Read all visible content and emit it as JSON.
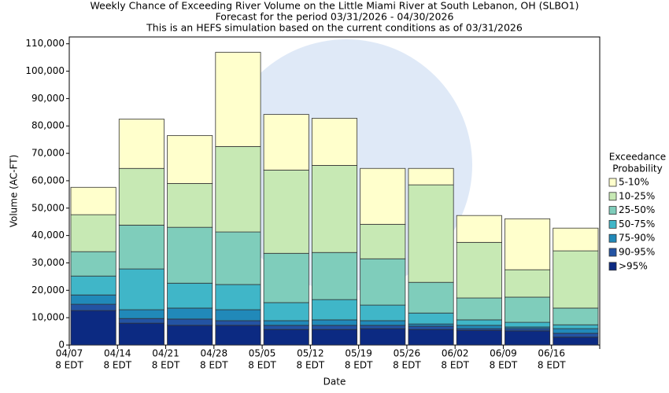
{
  "chart_data": {
    "type": "stacked_bar",
    "title": "Weekly Chance of Exceeding River Volume on the Little Miami River at South Lebanon, OH (SLBO1)",
    "subtitle": [
      "Forecast for the period 03/31/2026 - 04/30/2026",
      "This is an HEFS simulation based on the current conditions as of 03/31/2026"
    ],
    "x_label": "Date",
    "y_label": "Volume (AC-FT)",
    "legend_title": [
      "Exceedance",
      "Probability"
    ],
    "categories": [
      [
        "04/07",
        "8 EDT"
      ],
      [
        "04/14",
        "8 EDT"
      ],
      [
        "04/21",
        "8 EDT"
      ],
      [
        "04/28",
        "8 EDT"
      ],
      [
        "05/05",
        "8 EDT"
      ],
      [
        "05/12",
        "8 EDT"
      ],
      [
        "05/19",
        "8 EDT"
      ],
      [
        "05/26",
        "8 EDT"
      ],
      [
        "06/02",
        "8 EDT"
      ],
      [
        "06/09",
        "8 EDT"
      ],
      [
        "06/16",
        "8 EDT"
      ]
    ],
    "series": [
      {
        "name": ">95%",
        "color": "#0c2a82",
        "values": [
          12600,
          8000,
          7200,
          7200,
          5700,
          5700,
          6000,
          5700,
          5400,
          5200,
          2900
        ]
      },
      {
        "name": "90-95%",
        "color": "#2353a3",
        "values": [
          2300,
          1700,
          2300,
          1700,
          1500,
          1500,
          1200,
          1200,
          600,
          800,
          1400
        ]
      },
      {
        "name": "75-90%",
        "color": "#2189b9",
        "values": [
          3400,
          3200,
          4000,
          4000,
          1700,
          2000,
          1700,
          800,
          1200,
          600,
          1700
        ]
      },
      {
        "name": "50-75%",
        "color": "#40b6c8",
        "values": [
          6900,
          14900,
          9100,
          9200,
          6600,
          7400,
          5700,
          4000,
          2000,
          1700,
          1400
        ]
      },
      {
        "name": "25-50%",
        "color": "#7fcdbb",
        "values": [
          8900,
          16000,
          20400,
          19200,
          18000,
          17200,
          16900,
          11200,
          8000,
          9200,
          6100
        ]
      },
      {
        "name": "10-25%",
        "color": "#c7e9b4",
        "values": [
          13500,
          20700,
          16000,
          31200,
          30400,
          31800,
          12600,
          35600,
          20300,
          10000,
          20900
        ]
      },
      {
        "name": "5-10%",
        "color": "#ffffcc",
        "values": [
          10000,
          18000,
          17500,
          34400,
          20300,
          17200,
          20400,
          6000,
          9800,
          18600,
          8300
        ]
      }
    ],
    "ylim": [
      0,
      112500
    ],
    "yticks": [
      0,
      {
        "value": 10000,
        "label": "10,000"
      },
      {
        "value": 20000,
        "label": "20,000"
      },
      {
        "value": 30000,
        "label": "30,000"
      },
      {
        "value": 40000,
        "label": "40,000"
      },
      {
        "value": 50000,
        "label": "50,000"
      },
      {
        "value": 60000,
        "label": "60,000"
      },
      {
        "value": 70000,
        "label": "70,000"
      },
      {
        "value": 80000,
        "label": "80,000"
      },
      {
        "value": 90000,
        "label": "90,000"
      },
      {
        "value": 100000,
        "label": "100,000"
      },
      {
        "value": 110000,
        "label": "110,000"
      }
    ],
    "grid": false
  }
}
